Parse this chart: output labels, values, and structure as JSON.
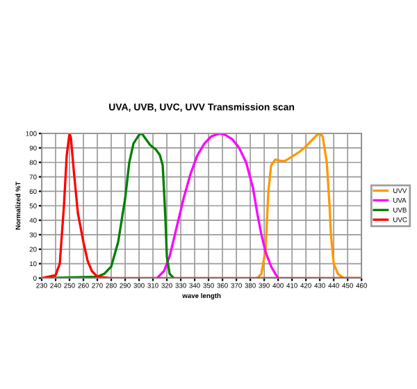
{
  "chart_data": {
    "type": "line",
    "title": "UVA, UVB, UVC, UVV Transmission scan",
    "xlabel": "wave length",
    "ylabel": "Normalized %T",
    "xlim": [
      230,
      460
    ],
    "xticks": [
      230,
      240,
      250,
      260,
      270,
      280,
      290,
      300,
      310,
      320,
      330,
      340,
      350,
      360,
      370,
      380,
      390,
      400,
      410,
      420,
      430,
      440,
      450,
      460
    ],
    "ylim": [
      0,
      100
    ],
    "yticks": [
      0,
      10,
      20,
      30,
      40,
      50,
      60,
      70,
      80,
      90,
      100
    ],
    "grid": true,
    "legend": "right",
    "marker": "none",
    "line_style": "solid",
    "series": [
      {
        "name": "UVV",
        "color": "#ff9900",
        "x": [
          385,
          388,
          391,
          393,
          395,
          398,
          402,
          405,
          410,
          415,
          420,
          425,
          428,
          430,
          432,
          435,
          437,
          438,
          440,
          443,
          447,
          460
        ],
        "values": [
          0,
          3,
          20,
          60,
          78,
          82,
          81,
          81,
          84,
          87,
          91,
          96,
          99,
          100,
          98,
          80,
          50,
          30,
          10,
          3,
          0,
          0
        ]
      },
      {
        "name": "UVA",
        "color": "#ff00ff",
        "x": [
          313,
          318,
          322,
          327,
          332,
          337,
          342,
          347,
          352,
          358,
          362,
          367,
          372,
          377,
          382,
          385,
          388,
          391,
          395,
          398,
          400
        ],
        "values": [
          0,
          5,
          15,
          35,
          55,
          72,
          85,
          93,
          98,
          100,
          99,
          96,
          90,
          80,
          62,
          45,
          30,
          18,
          8,
          3,
          0
        ]
      },
      {
        "name": "UVB",
        "color": "#008000",
        "x": [
          230,
          270,
          275,
          280,
          285,
          290,
          293,
          296,
          300,
          302,
          305,
          308,
          312,
          315,
          317,
          318,
          319,
          320,
          322,
          325
        ],
        "values": [
          0,
          1,
          3,
          8,
          25,
          55,
          80,
          93,
          99,
          100,
          96,
          92,
          89,
          85,
          78,
          60,
          40,
          15,
          3,
          0
        ]
      },
      {
        "name": "UVC",
        "color": "#ff0000",
        "x": [
          230,
          240,
          243,
          246,
          248,
          250,
          251,
          253,
          256,
          260,
          263,
          266,
          270,
          280,
          460
        ],
        "values": [
          0,
          2,
          10,
          50,
          85,
          100,
          97,
          75,
          45,
          25,
          12,
          5,
          1,
          0,
          0
        ]
      }
    ]
  }
}
